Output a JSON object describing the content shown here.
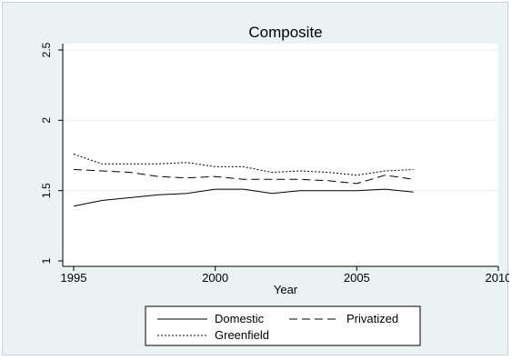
{
  "chart_data": {
    "type": "line",
    "title": "Composite",
    "xlabel": "Year",
    "ylabel": "",
    "xlim": [
      1995,
      2010
    ],
    "ylim": [
      1,
      2.5
    ],
    "x_ticks": [
      "1995",
      "2000",
      "2005",
      "2010"
    ],
    "y_ticks": [
      "1",
      "1.5",
      "2",
      "2.5"
    ],
    "grid": true,
    "legend_position": "bottom",
    "x": [
      1995,
      1996,
      1997,
      1998,
      1999,
      2000,
      2001,
      2002,
      2003,
      2004,
      2005,
      2006,
      2007
    ],
    "series": [
      {
        "name": "Domestic",
        "dash": "solid",
        "values": [
          1.39,
          1.43,
          1.45,
          1.47,
          1.48,
          1.51,
          1.51,
          1.48,
          1.5,
          1.5,
          1.5,
          1.51,
          1.49
        ]
      },
      {
        "name": "Privatized",
        "dash": "dashed",
        "values": [
          1.65,
          1.64,
          1.63,
          1.6,
          1.59,
          1.6,
          1.58,
          1.58,
          1.58,
          1.57,
          1.55,
          1.61,
          1.58
        ]
      },
      {
        "name": "Greenfield",
        "dash": "dotted",
        "values": [
          1.76,
          1.69,
          1.69,
          1.69,
          1.7,
          1.67,
          1.67,
          1.63,
          1.64,
          1.63,
          1.61,
          1.64,
          1.65
        ]
      }
    ]
  }
}
